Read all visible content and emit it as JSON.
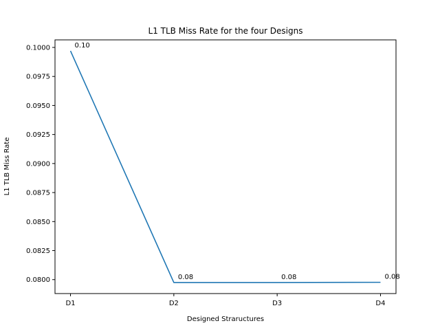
{
  "chart_data": {
    "type": "line",
    "title": "L1 TLB Miss Rate for the four Designs",
    "xlabel": "Designed Straructures",
    "ylabel": "L1 TLB Miss Rate",
    "categories": [
      "D1",
      "D2",
      "D3",
      "D4"
    ],
    "series": [
      {
        "values": [
          0.0997,
          0.07975,
          0.07975,
          0.07977
        ],
        "data_labels": [
          "0.10",
          "0.08",
          "0.08",
          "0.08"
        ],
        "color": "#1f77b4"
      }
    ],
    "ylim": [
      0.0788,
      0.10065
    ],
    "xlim": [
      -0.15,
      3.15
    ],
    "yticks": [
      0.08,
      0.0825,
      0.085,
      0.0875,
      0.09,
      0.0925,
      0.095,
      0.0975,
      0.1
    ],
    "ytick_labels": [
      "0.0800",
      "0.0825",
      "0.0850",
      "0.0875",
      "0.0900",
      "0.0925",
      "0.0950",
      "0.0975",
      "0.1000"
    ],
    "grid": false,
    "legend": "none"
  }
}
